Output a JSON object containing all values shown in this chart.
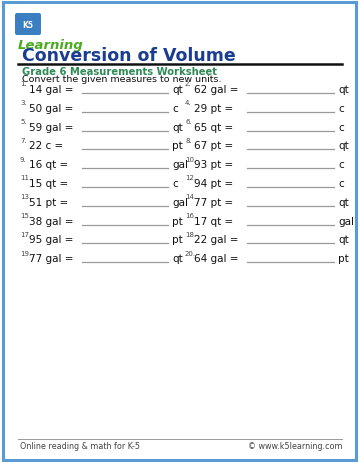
{
  "title": "Conversion of Volume",
  "subtitle": "Grade 6 Measurements Worksheet",
  "instruction": "Convert the given measures to new units.",
  "title_color": "#1b3d8f",
  "subtitle_color": "#2e8b57",
  "border_color": "#5b9bd5",
  "background_color": "#ffffff",
  "footer_left": "Online reading & math for K-5",
  "footer_right": "© www.k5learning.com",
  "problems": [
    {
      "num": "1.",
      "text": "14 gal =",
      "unit": "qt"
    },
    {
      "num": "2.",
      "text": "62 gal =",
      "unit": "qt"
    },
    {
      "num": "3.",
      "text": "50 gal =",
      "unit": "c"
    },
    {
      "num": "4.",
      "text": "29 pt =",
      "unit": "c"
    },
    {
      "num": "5.",
      "text": "59 gal =",
      "unit": "qt"
    },
    {
      "num": "6.",
      "text": "65 qt =",
      "unit": "c"
    },
    {
      "num": "7.",
      "text": "22 c =",
      "unit": "pt"
    },
    {
      "num": "8.",
      "text": "67 pt =",
      "unit": "qt"
    },
    {
      "num": "9.",
      "text": "16 qt =",
      "unit": "gal"
    },
    {
      "num": "10.",
      "text": "93 pt =",
      "unit": "c"
    },
    {
      "num": "11.",
      "text": "15 qt =",
      "unit": "c"
    },
    {
      "num": "12.",
      "text": "94 pt =",
      "unit": "c"
    },
    {
      "num": "13.",
      "text": "51 pt =",
      "unit": "gal"
    },
    {
      "num": "14.",
      "text": "77 pt =",
      "unit": "qt"
    },
    {
      "num": "15.",
      "text": "38 gal =",
      "unit": "pt"
    },
    {
      "num": "16.",
      "text": "17 qt =",
      "unit": "gal"
    },
    {
      "num": "17.",
      "text": "95 gal =",
      "unit": "pt"
    },
    {
      "num": "18.",
      "text": "22 gal =",
      "unit": "qt"
    },
    {
      "num": "19.",
      "text": "77 gal =",
      "unit": "qt"
    },
    {
      "num": "20.",
      "text": "64 gal =",
      "unit": "pt"
    }
  ]
}
